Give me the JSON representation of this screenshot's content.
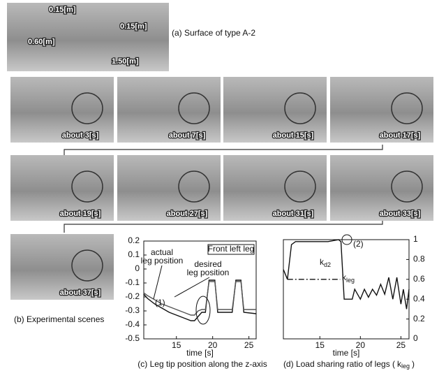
{
  "panel_a": {
    "caption": "(a) Surface of type A-2",
    "dimensions": [
      "0.15[m]",
      "0.15[m]",
      "0.60[m]",
      "1.50[m]"
    ]
  },
  "scenes": {
    "caption": "(b) Experimental scenes",
    "labels": [
      "about 3[s]",
      "about 7[s]",
      "about 15[s]",
      "about 17[s]",
      "about 19[s]",
      "about 27[s]",
      "about 31[s]",
      "about 33[s]",
      "about 37[s]"
    ]
  },
  "chart_data": [
    {
      "type": "line",
      "caption": "(c) Leg tip position along the z-axis",
      "x_label": "time [s]",
      "legend_title": "Front left leg",
      "annotations": [
        "actual",
        "leg position",
        "desired",
        "leg position",
        "(1)"
      ],
      "xlim": [
        10.5,
        26
      ],
      "xticks": [
        15,
        20,
        25
      ],
      "ylim": [
        -0.5,
        0.2
      ],
      "yticks": [
        -0.5,
        -0.4,
        -0.3,
        -0.2,
        -0.1,
        0,
        0.1,
        0.2
      ],
      "series": [
        {
          "color": "#111111",
          "x": [
            10.5,
            11,
            12,
            13,
            14,
            15,
            16,
            17,
            17.5,
            18,
            18.5,
            19,
            19.5,
            20.3,
            20.7,
            22.7,
            23.2,
            23.9,
            24.3,
            26
          ],
          "values": [
            -0.18,
            -0.21,
            -0.25,
            -0.28,
            -0.31,
            -0.33,
            -0.35,
            -0.37,
            -0.37,
            -0.34,
            -0.31,
            -0.31,
            -0.08,
            -0.08,
            -0.31,
            -0.31,
            -0.08,
            -0.08,
            -0.31,
            -0.32
          ]
        },
        {
          "color": "#555555",
          "x": [
            10.5,
            11,
            12,
            13,
            14,
            15,
            16,
            17,
            17.5,
            18,
            18.5,
            19,
            19.5,
            20.3,
            20.7,
            22.7,
            23.2,
            23.9,
            24.3,
            26
          ],
          "values": [
            -0.17,
            -0.19,
            -0.22,
            -0.25,
            -0.27,
            -0.29,
            -0.31,
            -0.33,
            -0.33,
            -0.3,
            -0.29,
            -0.29,
            -0.09,
            -0.09,
            -0.29,
            -0.29,
            -0.09,
            -0.09,
            -0.29,
            -0.29
          ]
        }
      ]
    },
    {
      "type": "line",
      "caption": "(d) Load sharing ratio of legs (",
      "caption_symbol": "k",
      "caption_sub": "leg",
      "caption_end": ")",
      "x_label": "time [s]",
      "annotations": [
        {
          "symbol": "k",
          "sub": "d2"
        },
        {
          "symbol": "k",
          "sub": "leg"
        },
        "(2)"
      ],
      "xlim": [
        10.5,
        26
      ],
      "xticks": [
        15,
        20,
        25
      ],
      "ylim": [
        0,
        1
      ],
      "yticks": [
        0,
        0.2,
        0.4,
        0.6,
        0.8,
        1
      ],
      "series": [
        {
          "color": "#111111",
          "x": [
            10.5,
            11,
            11.5,
            12,
            16,
            17.3,
            17.6,
            18,
            19,
            19.3,
            20,
            20.5,
            21,
            21.5,
            22,
            22.5,
            23,
            23.5,
            24,
            24.5,
            25,
            25.3,
            25.7,
            26
          ],
          "values": [
            0.7,
            0.6,
            0.95,
            0.98,
            0.98,
            1,
            0.98,
            0.4,
            0.4,
            0.5,
            0.4,
            0.5,
            0.42,
            0.5,
            0.44,
            0.55,
            0.45,
            0.62,
            0.4,
            0.62,
            0.35,
            0.5,
            0.3,
            0.5
          ]
        },
        {
          "color": "#111111",
          "dash": true,
          "x": [
            11,
            17.5
          ],
          "values": [
            0.6,
            0.6
          ]
        }
      ]
    }
  ]
}
